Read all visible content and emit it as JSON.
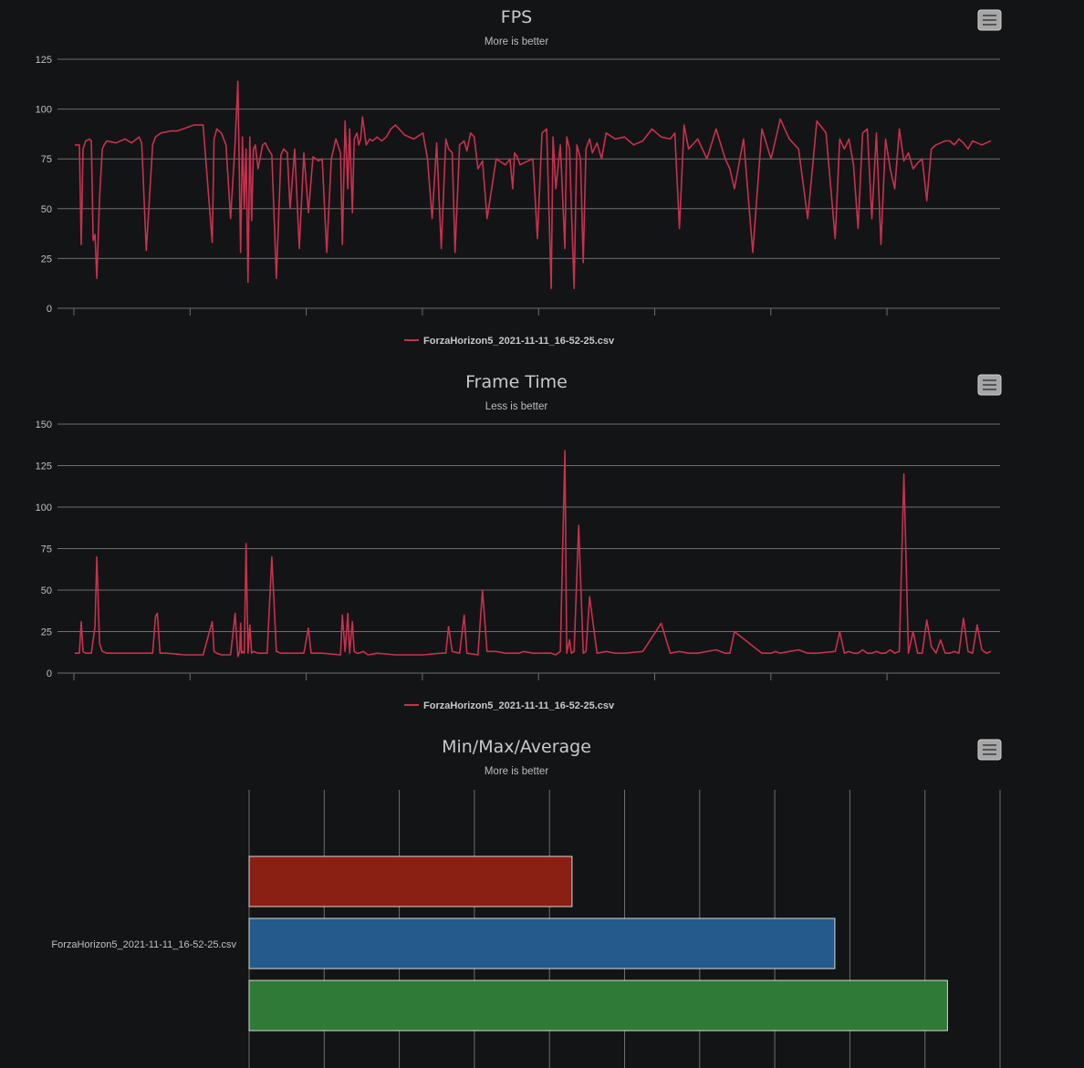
{
  "colors": {
    "background": "#131415",
    "grid": "#6e6e6e",
    "series": "#c8314f",
    "min_bar": "#8a1f14",
    "avg_bar": "#245a8c",
    "max_bar": "#2f7a36",
    "menu_button": "#a8a8a8"
  },
  "menu_icon": "hamburger-menu-icon",
  "chart_data": [
    {
      "type": "line",
      "title": "FPS",
      "subtitle": "More is better",
      "ylim": [
        0,
        125
      ],
      "yticks": [
        0,
        25,
        50,
        75,
        100,
        125
      ],
      "xlim": [
        0,
        1000
      ],
      "legend": "bottom-center",
      "series": [
        {
          "name": "ForzaHorizon5_2021-11-11_16-52-25.csv",
          "x": [
            0,
            5,
            7,
            9,
            12,
            16,
            18,
            20,
            22,
            24,
            27,
            30,
            32,
            35,
            45,
            55,
            62,
            70,
            73,
            78,
            85,
            88,
            91,
            94,
            105,
            112,
            118,
            130,
            140,
            150,
            152,
            155,
            160,
            165,
            170,
            175,
            178,
            181,
            183,
            185,
            187,
            189,
            191,
            193,
            195,
            197,
            200,
            205,
            208,
            211,
            215,
            220,
            225,
            228,
            232,
            235,
            240,
            245,
            250,
            255,
            260,
            263,
            266,
            270,
            275,
            280,
            285,
            290,
            292,
            295,
            298,
            300,
            303,
            305,
            308,
            310,
            312,
            314,
            318,
            322,
            325,
            330,
            335,
            340,
            345,
            350,
            360,
            370,
            380,
            385,
            390,
            395,
            400,
            405,
            408,
            412,
            415,
            420,
            425,
            428,
            432,
            436,
            440,
            445,
            450,
            460,
            470,
            475,
            478,
            480,
            483,
            486,
            490,
            500,
            505,
            510,
            515,
            520,
            522,
            525,
            530,
            535,
            537,
            540,
            542,
            545,
            548,
            552,
            555,
            558,
            562,
            565,
            570,
            575,
            580,
            590,
            600,
            610,
            620,
            630,
            640,
            650,
            655,
            660,
            665,
            670,
            680,
            690,
            700,
            710,
            715,
            720,
            730,
            740,
            750,
            760,
            765,
            770,
            780,
            790,
            800,
            810,
            820,
            830,
            835,
            840,
            845,
            850,
            855,
            860,
            865,
            870,
            875,
            880,
            885,
            890,
            895,
            900,
            905,
            910,
            915,
            920,
            925,
            930,
            935,
            940,
            945,
            950,
            955,
            960,
            965,
            970,
            975,
            980,
            985,
            990,
            995,
            1000
          ],
          "y": [
            82,
            82,
            32,
            80,
            84,
            85,
            84,
            34,
            37,
            15,
            55,
            80,
            82,
            84,
            83,
            85,
            83,
            86,
            83,
            29,
            82,
            86,
            87,
            88,
            89,
            89,
            90,
            92,
            92,
            33,
            85,
            90,
            88,
            82,
            45,
            83,
            114,
            28,
            86,
            50,
            80,
            13,
            86,
            44,
            80,
            82,
            70,
            82,
            83,
            80,
            77,
            15,
            77,
            80,
            78,
            50,
            80,
            30,
            78,
            48,
            76,
            75,
            74,
            75,
            28,
            75,
            85,
            78,
            32,
            94,
            60,
            90,
            48,
            85,
            88,
            82,
            85,
            96,
            82,
            85,
            84,
            86,
            84,
            86,
            90,
            92,
            87,
            85,
            88,
            75,
            45,
            83,
            30,
            85,
            80,
            78,
            28,
            82,
            84,
            79,
            88,
            86,
            70,
            74,
            45,
            75,
            72,
            75,
            60,
            78,
            76,
            72,
            73,
            75,
            35,
            88,
            90,
            10,
            86,
            60,
            82,
            30,
            86,
            80,
            50,
            10,
            82,
            75,
            23,
            80,
            85,
            78,
            83,
            75,
            88,
            85,
            86,
            82,
            84,
            90,
            86,
            85,
            88,
            40,
            92,
            80,
            85,
            75,
            90,
            75,
            70,
            60,
            85,
            28,
            90,
            75,
            85,
            95,
            85,
            80,
            45,
            94,
            88,
            35,
            85,
            80,
            85,
            72,
            40,
            88,
            90,
            45,
            88,
            32,
            85,
            70,
            60,
            90,
            74,
            78,
            70,
            73,
            75,
            54,
            80,
            82,
            83,
            84,
            84,
            82,
            85,
            83,
            80,
            84,
            83,
            82,
            83,
            84
          ]
        }
      ]
    },
    {
      "type": "line",
      "title": "Frame Time",
      "subtitle": "Less is better",
      "ylim": [
        0,
        150
      ],
      "yticks": [
        0,
        25,
        50,
        75,
        100,
        125,
        150
      ],
      "xlim": [
        0,
        1000
      ],
      "legend": "bottom-center",
      "series": [
        {
          "name": "ForzaHorizon5_2021-11-11_16-52-25.csv",
          "x": [
            0,
            5,
            7,
            9,
            12,
            18,
            22,
            24,
            27,
            30,
            35,
            50,
            70,
            85,
            88,
            90,
            93,
            100,
            120,
            140,
            150,
            152,
            155,
            160,
            170,
            175,
            178,
            180,
            181,
            182,
            183,
            185,
            187,
            189,
            191,
            193,
            195,
            200,
            210,
            215,
            220,
            225,
            230,
            250,
            255,
            258,
            260,
            270,
            290,
            292,
            295,
            298,
            300,
            303,
            305,
            308,
            310,
            315,
            320,
            330,
            350,
            380,
            400,
            405,
            408,
            412,
            420,
            425,
            428,
            440,
            445,
            450,
            460,
            470,
            480,
            485,
            490,
            500,
            510,
            520,
            525,
            530,
            535,
            537,
            540,
            542,
            545,
            550,
            555,
            558,
            562,
            570,
            580,
            590,
            600,
            620,
            640,
            650,
            660,
            670,
            680,
            700,
            710,
            715,
            720,
            750,
            760,
            765,
            770,
            780,
            790,
            800,
            810,
            830,
            835,
            840,
            845,
            850,
            855,
            860,
            865,
            870,
            875,
            880,
            885,
            890,
            895,
            900,
            905,
            910,
            915,
            920,
            925,
            930,
            935,
            940,
            945,
            950,
            955,
            960,
            965,
            970,
            975,
            980,
            985,
            990,
            995,
            1000
          ],
          "y": [
            12,
            12,
            31,
            13,
            12,
            12,
            28,
            70,
            18,
            13,
            12,
            12,
            12,
            12,
            34,
            36,
            12,
            12,
            11,
            11,
            31,
            13,
            12,
            11,
            11,
            36,
            10,
            13,
            30,
            12,
            13,
            12,
            78,
            12,
            29,
            12,
            13,
            12,
            12,
            70,
            13,
            12,
            12,
            12,
            27,
            12,
            12,
            12,
            11,
            35,
            13,
            36,
            12,
            31,
            13,
            12,
            12,
            13,
            11,
            12,
            11,
            11,
            12,
            12,
            28,
            13,
            12,
            35,
            12,
            11,
            50,
            13,
            13,
            12,
            12,
            12,
            13,
            12,
            12,
            12,
            11,
            13,
            134,
            12,
            20,
            12,
            13,
            89,
            12,
            13,
            46,
            12,
            13,
            12,
            12,
            13,
            30,
            12,
            13,
            12,
            12,
            14,
            12,
            12,
            25,
            12,
            12,
            13,
            12,
            13,
            14,
            12,
            12,
            13,
            25,
            12,
            13,
            12,
            12,
            14,
            12,
            12,
            13,
            12,
            12,
            14,
            12,
            13,
            120,
            12,
            25,
            12,
            12,
            32,
            16,
            12,
            20,
            12,
            12,
            13,
            12,
            33,
            13,
            12,
            29,
            14,
            12,
            13
          ]
        }
      ]
    },
    {
      "type": "bar",
      "orientation": "horizontal",
      "title": "Min/Max/Average",
      "subtitle": "More is better",
      "categories": [
        "ForzaHorizon5_2021-11-11_16-52-25.csv"
      ],
      "xlim": [
        0,
        100
      ],
      "gridlines": 10,
      "series": [
        {
          "values": [
            43
          ]
        },
        {
          "values": [
            78
          ]
        },
        {
          "values": [
            93
          ]
        }
      ]
    }
  ]
}
